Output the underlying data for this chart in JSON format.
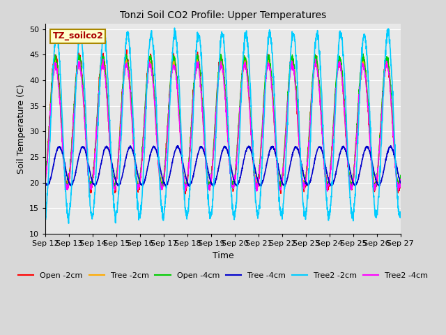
{
  "title": "Tonzi Soil CO2 Profile: Upper Temperatures",
  "xlabel": "Time",
  "ylabel": "Soil Temperature (C)",
  "ylim": [
    10,
    51
  ],
  "yticks": [
    10,
    15,
    20,
    25,
    30,
    35,
    40,
    45,
    50
  ],
  "plot_bg_color": "#e8e8e8",
  "fig_bg_color": "#d8d8d8",
  "grid_color": "#ffffff",
  "annotation_text": "TZ_soilco2",
  "annotation_bg": "#ffffcc",
  "annotation_border": "#aa8800",
  "annotation_text_color": "#aa0000",
  "series": {
    "Open -2cm": {
      "color": "#ff0000",
      "lw": 1.0
    },
    "Tree -2cm": {
      "color": "#ffaa00",
      "lw": 1.0
    },
    "Open -4cm": {
      "color": "#00cc00",
      "lw": 1.0
    },
    "Tree -4cm": {
      "color": "#0000cc",
      "lw": 1.2
    },
    "Tree2 -2cm": {
      "color": "#00ccff",
      "lw": 1.2
    },
    "Tree2 -4cm": {
      "color": "#ff00ff",
      "lw": 1.0
    }
  },
  "xtick_labels": [
    "Sep 12",
    "Sep 13",
    "Sep 14",
    "Sep 15",
    "Sep 16",
    "Sep 17",
    "Sep 18",
    "Sep 19",
    "Sep 20",
    "Sep 21",
    "Sep 22",
    "Sep 23",
    "Sep 24",
    "Sep 25",
    "Sep 26",
    "Sep 27"
  ]
}
